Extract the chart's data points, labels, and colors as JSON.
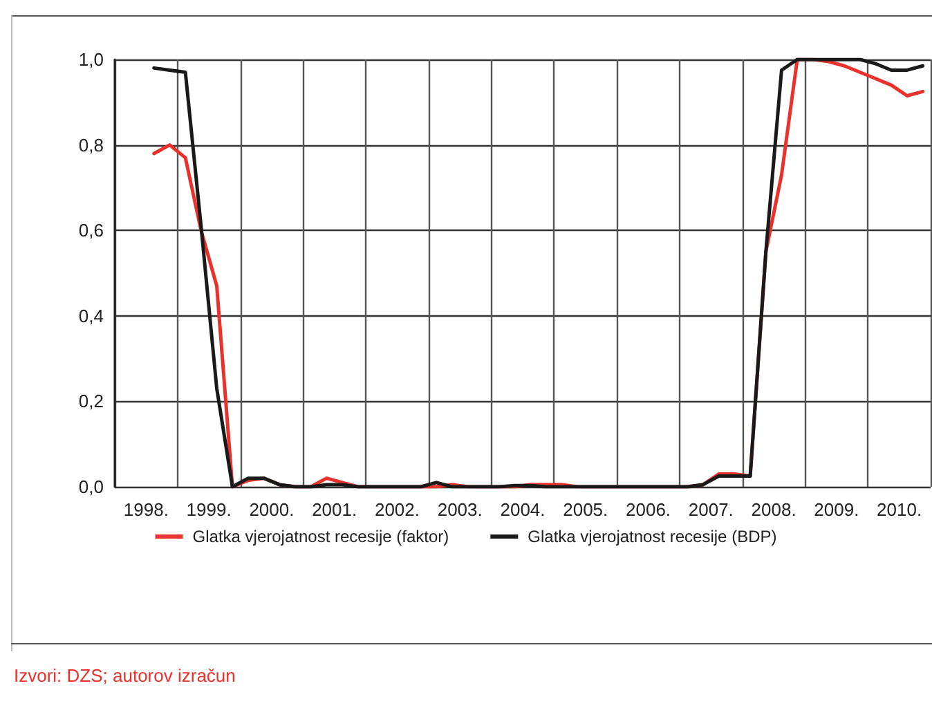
{
  "chart_data": {
    "type": "line",
    "x": [
      1998.625,
      1998.875,
      1999.125,
      1999.375,
      1999.625,
      1999.875,
      2000.125,
      2000.375,
      2000.625,
      2000.875,
      2001.125,
      2001.375,
      2001.625,
      2001.875,
      2002.125,
      2002.375,
      2002.625,
      2002.875,
      2003.125,
      2003.375,
      2003.625,
      2003.875,
      2004.125,
      2004.375,
      2004.625,
      2004.875,
      2005.125,
      2005.375,
      2005.625,
      2005.875,
      2006.125,
      2006.375,
      2006.625,
      2006.875,
      2007.125,
      2007.375,
      2007.625,
      2007.875,
      2008.125,
      2008.375,
      2008.625,
      2008.875,
      2009.125,
      2009.375,
      2009.625,
      2009.875,
      2010.125,
      2010.375,
      2010.625,
      2010.875
    ],
    "series": [
      {
        "name": "Glatka vjerojatnost recesije (faktor)",
        "color": "#e8322b",
        "values": [
          0.78,
          0.8,
          0.77,
          0.6,
          0.47,
          0.0,
          0.015,
          0.02,
          0.005,
          0.0,
          0.0,
          0.02,
          0.01,
          0.0,
          0,
          0,
          0,
          0,
          0,
          0.005,
          0,
          0,
          0,
          0,
          0.005,
          0.005,
          0.005,
          0,
          0,
          0,
          0,
          0,
          0,
          0,
          0,
          0.005,
          0.03,
          0.03,
          0.025,
          0.55,
          0.73,
          1.0,
          1.0,
          0.995,
          0.985,
          0.97,
          0.955,
          0.94,
          0.915,
          0.925
        ]
      },
      {
        "name": "Glatka vjerojatnost recesije (BDP)",
        "color": "#1a1a1a",
        "values": [
          0.98,
          0.975,
          0.97,
          0.61,
          0.23,
          0.0,
          0.02,
          0.02,
          0.005,
          0,
          0,
          0.005,
          0.005,
          0,
          0,
          0,
          0,
          0,
          0.01,
          0,
          0,
          0,
          0,
          0.003,
          0.003,
          0,
          0,
          0,
          0,
          0,
          0,
          0,
          0,
          0,
          0,
          0.005,
          0.025,
          0.025,
          0.025,
          0.55,
          0.975,
          1.0,
          1,
          1,
          1,
          1,
          0.99,
          0.975,
          0.975,
          0.985
        ]
      }
    ],
    "xlim": [
      1998,
      2011
    ],
    "xticks": [
      {
        "value": 1998,
        "label": null
      },
      {
        "value": 1998.5,
        "label": "1998."
      },
      {
        "value": 1999,
        "label": null
      },
      {
        "value": 1999.5,
        "label": "1999."
      },
      {
        "value": 2000,
        "label": null
      },
      {
        "value": 2000.5,
        "label": "2000."
      },
      {
        "value": 2001,
        "label": null
      },
      {
        "value": 2001.5,
        "label": "2001."
      },
      {
        "value": 2002,
        "label": null
      },
      {
        "value": 2002.5,
        "label": "2002."
      },
      {
        "value": 2003,
        "label": null
      },
      {
        "value": 2003.5,
        "label": "2003."
      },
      {
        "value": 2004,
        "label": null
      },
      {
        "value": 2004.5,
        "label": "2004."
      },
      {
        "value": 2005,
        "label": null
      },
      {
        "value": 2005.5,
        "label": "2005."
      },
      {
        "value": 2006,
        "label": null
      },
      {
        "value": 2006.5,
        "label": "2006."
      },
      {
        "value": 2007,
        "label": null
      },
      {
        "value": 2007.5,
        "label": "2007."
      },
      {
        "value": 2008,
        "label": null
      },
      {
        "value": 2008.5,
        "label": "2008."
      },
      {
        "value": 2009,
        "label": null
      },
      {
        "value": 2009.5,
        "label": "2009."
      },
      {
        "value": 2010,
        "label": null
      },
      {
        "value": 2010.5,
        "label": "2010."
      },
      {
        "value": 2011,
        "label": null
      }
    ],
    "ylim": [
      0,
      1
    ],
    "yticks": [
      {
        "value": 0,
        "label": "0,0"
      },
      {
        "value": 0.2,
        "label": "0,2"
      },
      {
        "value": 0.4,
        "label": "0,4"
      },
      {
        "value": 0.6,
        "label": "0,6"
      },
      {
        "value": 0.8,
        "label": "0,8"
      },
      {
        "value": 1,
        "label": "1,0"
      }
    ],
    "grid": true,
    "legend": "bottom",
    "marker": "none",
    "line_style": "solid",
    "annotations": [
      "Izvori: DZS; autorov izračun"
    ]
  }
}
